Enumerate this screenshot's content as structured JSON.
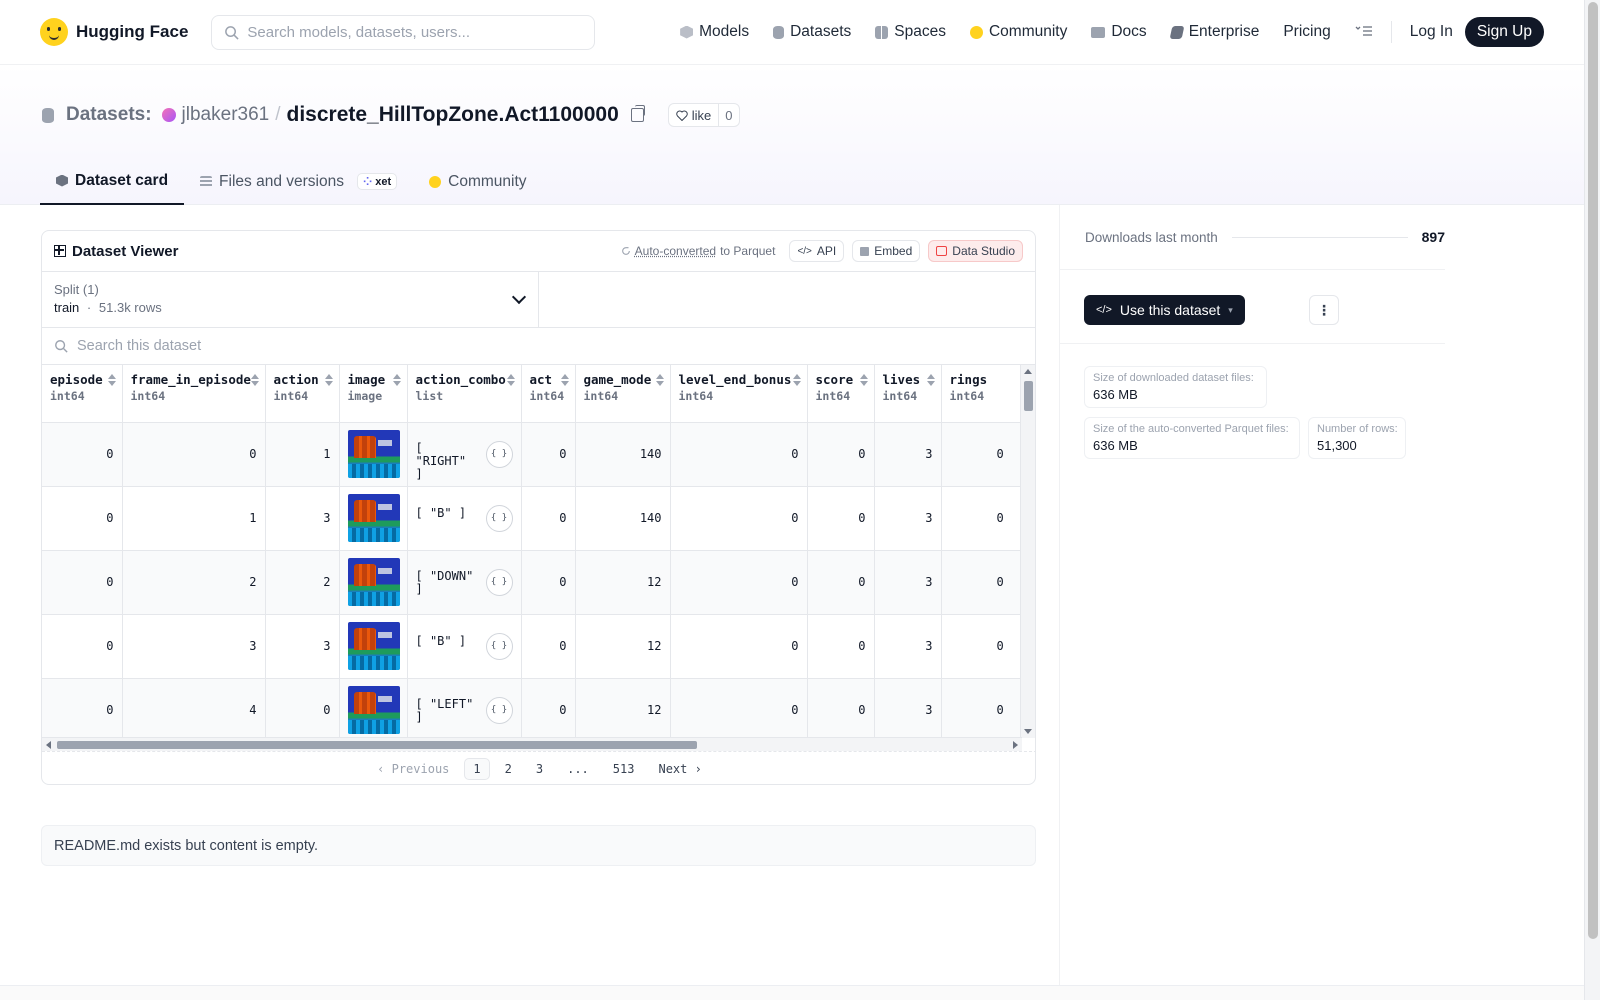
{
  "nav": {
    "brand": "Hugging Face",
    "search_placeholder": "Search models, datasets, users...",
    "links": [
      "Models",
      "Datasets",
      "Spaces",
      "Community",
      "Docs",
      "Enterprise",
      "Pricing"
    ],
    "login": "Log In",
    "signup": "Sign Up"
  },
  "header": {
    "crumb_label": "Datasets:",
    "owner": "jlbaker361",
    "separator": "/",
    "repo": "discrete_HillTopZone.Act1100000",
    "like_label": "like",
    "like_count": "0",
    "tabs": [
      "Dataset card",
      "Files and versions",
      "Community"
    ],
    "xet_badge": "xet"
  },
  "viewer": {
    "title": "Dataset Viewer",
    "auto_converted": "Auto-converted",
    "to_parquet": "to Parquet",
    "api": "API",
    "embed": "Embed",
    "studio": "Data Studio",
    "split_label": "Split (1)",
    "split_name": "train",
    "split_sep": "·",
    "split_rows": "51.3k rows",
    "search_placeholder": "Search this dataset",
    "columns": [
      {
        "name": "episode",
        "type": "int64"
      },
      {
        "name": "frame_in_episode",
        "type": "int64"
      },
      {
        "name": "action",
        "type": "int64"
      },
      {
        "name": "image",
        "type": "image"
      },
      {
        "name": "action_combo",
        "type": "list"
      },
      {
        "name": "act",
        "type": "int64"
      },
      {
        "name": "game_mode",
        "type": "int64"
      },
      {
        "name": "level_end_bonus",
        "type": "int64"
      },
      {
        "name": "score",
        "type": "int64"
      },
      {
        "name": "lives",
        "type": "int64"
      },
      {
        "name": "rings",
        "type": "int64"
      }
    ],
    "rows": [
      {
        "episode": "0",
        "frame": "0",
        "action": "1",
        "combo": "[ \"RIGHT\"\n]",
        "act": "0",
        "game_mode": "140",
        "level_end_bonus": "0",
        "score": "0",
        "lives": "3",
        "rings": "0"
      },
      {
        "episode": "0",
        "frame": "1",
        "action": "3",
        "combo": "[ \"B\" ]",
        "act": "0",
        "game_mode": "140",
        "level_end_bonus": "0",
        "score": "0",
        "lives": "3",
        "rings": "0"
      },
      {
        "episode": "0",
        "frame": "2",
        "action": "2",
        "combo": "[ \"DOWN\"\n]",
        "act": "0",
        "game_mode": "12",
        "level_end_bonus": "0",
        "score": "0",
        "lives": "3",
        "rings": "0"
      },
      {
        "episode": "0",
        "frame": "3",
        "action": "3",
        "combo": "[ \"B\" ]",
        "act": "0",
        "game_mode": "12",
        "level_end_bonus": "0",
        "score": "0",
        "lives": "3",
        "rings": "0"
      },
      {
        "episode": "0",
        "frame": "4",
        "action": "0",
        "combo": "[ \"LEFT\"\n]",
        "act": "0",
        "game_mode": "12",
        "level_end_bonus": "0",
        "score": "0",
        "lives": "3",
        "rings": "0"
      }
    ],
    "json_glyph": "{ }",
    "pager": {
      "previous": "Previous",
      "pages": [
        "1",
        "2",
        "3",
        "...",
        "513"
      ],
      "current": "1",
      "next": "Next"
    }
  },
  "readme": "README.md exists but content is empty.",
  "sidebar": {
    "downloads_label": "Downloads last month",
    "downloads_value": "897",
    "use_dataset": "Use this dataset",
    "more": "⋮",
    "stats": [
      {
        "label": "Size of downloaded dataset files:",
        "value": "636 MB"
      },
      {
        "label": "Size of the auto-converted Parquet files:",
        "value": "636 MB"
      },
      {
        "label": "Number of rows:",
        "value": "51,300"
      }
    ]
  },
  "colors": {
    "brand_yellow": "#FFD21E",
    "primary_dark": "#111827",
    "studio_red": "#ef4444"
  }
}
